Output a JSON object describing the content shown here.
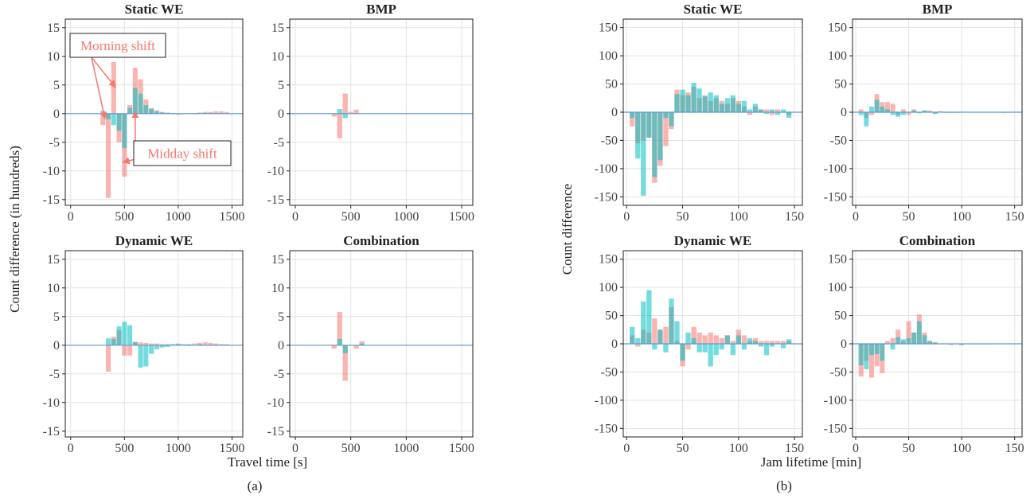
{
  "figure": {
    "width": 1299,
    "height": 627,
    "panel_a_caption": "(a)",
    "panel_b_caption": "(b)",
    "colors": {
      "series1": "#F8766D",
      "series2": "#00BFC4",
      "grid": "#e3e3e3",
      "baseline": "#5b9bd5",
      "annotation": "#F8766D"
    }
  },
  "chart_data": [
    {
      "id": "a1",
      "type": "bar",
      "title": "Static WE",
      "xlim": [
        -50,
        1600
      ],
      "ylim": [
        -16,
        16.5
      ],
      "bin_width": 50,
      "xticks": [
        0,
        500,
        1000,
        1500
      ],
      "yticks": [
        -15,
        -10,
        -5,
        0,
        5,
        10,
        15
      ],
      "grid": true,
      "annotations": [
        {
          "text": "Morning shift",
          "arrow_targets": [
            [
              320,
              -1
            ],
            [
              420,
              4.5
            ]
          ]
        },
        {
          "text": "Midday shift",
          "arrow_targets": [
            [
              480,
              -8.5
            ],
            [
              600,
              0.5
            ]
          ]
        }
      ],
      "series": [
        {
          "x": [
            300,
            350,
            400,
            450,
            500,
            550,
            600,
            650,
            700,
            750,
            800,
            850,
            900,
            950,
            1000,
            1050,
            1100,
            1150,
            1200,
            1250,
            1300,
            1350,
            1400,
            1450
          ],
          "values": [
            -2,
            -14.7,
            9,
            -5,
            -11,
            1.5,
            8,
            6,
            2.5,
            1,
            0.6,
            0.3,
            0.2,
            0.1,
            -0.2,
            -0.1,
            0.1,
            0.1,
            0.2,
            0.3,
            0.3,
            0.4,
            0.4,
            0.3
          ]
        },
        {
          "x": [
            300,
            350,
            400,
            450,
            500,
            550,
            600,
            650,
            700,
            750,
            800,
            850,
            900,
            950,
            1000,
            1050,
            1100,
            1150,
            1200,
            1250,
            1300,
            1350,
            1400,
            1450
          ],
          "values": [
            0.5,
            -1,
            -2,
            -3,
            -6,
            1,
            4.5,
            3.5,
            1.5,
            0.8,
            0.4,
            0.2,
            0.1,
            0.1,
            0,
            0,
            0,
            0,
            0,
            0.1,
            0.1,
            0.1,
            0.1,
            0
          ]
        }
      ]
    },
    {
      "id": "a2",
      "type": "bar",
      "title": "BMP",
      "xlim": [
        -50,
        1600
      ],
      "ylim": [
        -16,
        16.5
      ],
      "bin_width": 50,
      "xticks": [
        0,
        500,
        1000,
        1500
      ],
      "yticks": [
        -15,
        -10,
        -5,
        0,
        5,
        10,
        15
      ],
      "grid": true,
      "series": [
        {
          "x": [
            350,
            400,
            450,
            500,
            550
          ],
          "values": [
            -0.5,
            -4.3,
            3.5,
            0.3,
            0.7
          ]
        },
        {
          "x": [
            350,
            400,
            450,
            500,
            550
          ],
          "values": [
            0,
            0.8,
            -0.8,
            0,
            0
          ]
        }
      ]
    },
    {
      "id": "a3",
      "type": "bar",
      "title": "Dynamic WE",
      "xlim": [
        -50,
        1600
      ],
      "ylim": [
        -16,
        16.5
      ],
      "bin_width": 50,
      "xticks": [
        0,
        500,
        1000,
        1500
      ],
      "yticks": [
        -15,
        -10,
        -5,
        0,
        5,
        10,
        15
      ],
      "grid": true,
      "series": [
        {
          "x": [
            350,
            400,
            450,
            500,
            550,
            600,
            650,
            700,
            750,
            800,
            850,
            900,
            950,
            1000,
            1050,
            1100,
            1150,
            1200,
            1250,
            1300,
            1350,
            1400,
            1450
          ],
          "values": [
            -4.6,
            1.5,
            2.6,
            -1.8,
            -1.8,
            0.6,
            0.5,
            0.4,
            0.3,
            0.3,
            0.2,
            0.2,
            -0.1,
            0.3,
            0.2,
            -0.1,
            0.3,
            0.4,
            0.5,
            0.4,
            0.3,
            0.2,
            0.2
          ]
        },
        {
          "x": [
            350,
            400,
            450,
            500,
            550,
            600,
            650,
            700,
            750,
            800,
            850,
            900,
            950,
            1000,
            1050,
            1100,
            1150,
            1200,
            1250,
            1300,
            1350,
            1400,
            1450
          ],
          "values": [
            1.2,
            1.1,
            3.3,
            4.1,
            3.5,
            0.5,
            -3.9,
            -3.7,
            -1.5,
            -0.7,
            -0.4,
            -0.3,
            0.2,
            0.2,
            0.1,
            0.2,
            0,
            0.2,
            0.1,
            0.1,
            0.1,
            0.1,
            0
          ]
        }
      ]
    },
    {
      "id": "a4",
      "type": "bar",
      "title": "Combination",
      "xlim": [
        -50,
        1600
      ],
      "ylim": [
        -16,
        16.5
      ],
      "bin_width": 50,
      "xticks": [
        0,
        500,
        1000,
        1500
      ],
      "yticks": [
        -15,
        -10,
        -5,
        0,
        5,
        10,
        15
      ],
      "grid": true,
      "series": [
        {
          "x": [
            350,
            400,
            450,
            500,
            550,
            600
          ],
          "values": [
            -0.6,
            5.8,
            -6.2,
            0.1,
            -0.6,
            0.7
          ]
        },
        {
          "x": [
            350,
            400,
            450,
            500,
            550,
            600
          ],
          "values": [
            0,
            1.1,
            -1.4,
            0,
            0,
            0.3
          ]
        }
      ]
    },
    {
      "id": "b1",
      "type": "bar",
      "title": "Static WE",
      "xlim": [
        -3,
        157
      ],
      "ylim": [
        -165,
        165
      ],
      "bin_width": 5,
      "xticks": [
        0,
        50,
        100,
        150
      ],
      "yticks": [
        -150,
        -100,
        -50,
        0,
        50,
        100,
        150
      ],
      "grid": true,
      "series": [
        {
          "x": [
            5,
            10,
            15,
            20,
            25,
            30,
            35,
            40,
            45,
            50,
            55,
            60,
            65,
            70,
            75,
            80,
            85,
            90,
            95,
            100,
            105,
            110,
            115,
            120,
            125,
            130,
            135,
            140,
            145
          ],
          "values": [
            -25,
            -55,
            -50,
            -45,
            -125,
            -95,
            -60,
            -30,
            40,
            30,
            35,
            45,
            25,
            30,
            20,
            25,
            20,
            15,
            25,
            20,
            10,
            -5,
            10,
            5,
            5,
            -5,
            5,
            0,
            -5
          ]
        },
        {
          "x": [
            5,
            10,
            15,
            20,
            25,
            30,
            35,
            40,
            45,
            50,
            55,
            60,
            65,
            70,
            75,
            80,
            85,
            90,
            95,
            100,
            105,
            110,
            115,
            120,
            125,
            130,
            135,
            140,
            145
          ],
          "values": [
            -10,
            -82,
            -148,
            -45,
            -115,
            -85,
            -10,
            -25,
            32,
            40,
            30,
            52,
            42,
            28,
            35,
            30,
            15,
            25,
            30,
            15,
            20,
            5,
            15,
            5,
            -3,
            5,
            -5,
            5,
            -10
          ]
        }
      ]
    },
    {
      "id": "b2",
      "type": "bar",
      "title": "BMP",
      "xlim": [
        -3,
        157
      ],
      "ylim": [
        -165,
        165
      ],
      "bin_width": 5,
      "xticks": [
        0,
        50,
        100,
        150
      ],
      "yticks": [
        -150,
        -100,
        -50,
        0,
        50,
        100,
        150
      ],
      "grid": true,
      "series": [
        {
          "x": [
            5,
            10,
            15,
            20,
            25,
            30,
            35,
            40,
            45,
            50,
            55,
            60,
            65,
            70,
            75,
            80,
            85,
            90,
            95,
            100,
            105,
            110,
            115,
            120,
            125,
            130,
            135,
            140,
            145
          ],
          "values": [
            5,
            -10,
            -5,
            32,
            18,
            18,
            15,
            -5,
            5,
            -5,
            5,
            0,
            3,
            3,
            -2,
            2,
            -1,
            1,
            -1,
            1,
            0,
            0,
            0,
            0,
            0,
            0,
            0,
            0,
            0
          ]
        },
        {
          "x": [
            5,
            10,
            15,
            20,
            25,
            30,
            35,
            40,
            45,
            50,
            55,
            60,
            65,
            70,
            75,
            80,
            85,
            90,
            95,
            100,
            105,
            110,
            115,
            120,
            125,
            130,
            135,
            140,
            145
          ],
          "values": [
            -5,
            -25,
            10,
            22,
            10,
            5,
            -5,
            -8,
            -5,
            0,
            3,
            -2,
            3,
            0,
            -3,
            0,
            0,
            -1,
            0,
            0,
            0,
            0,
            0,
            0,
            0,
            0,
            0,
            -1,
            0
          ]
        }
      ]
    },
    {
      "id": "b3",
      "type": "bar",
      "title": "Dynamic WE",
      "xlim": [
        -3,
        157
      ],
      "ylim": [
        -165,
        165
      ],
      "bin_width": 5,
      "xticks": [
        0,
        50,
        100,
        150
      ],
      "yticks": [
        -150,
        -100,
        -50,
        0,
        50,
        100,
        150
      ],
      "grid": true,
      "series": [
        {
          "x": [
            5,
            10,
            15,
            20,
            25,
            30,
            35,
            40,
            45,
            50,
            55,
            60,
            65,
            70,
            75,
            80,
            85,
            90,
            95,
            100,
            105,
            110,
            115,
            120,
            125,
            130,
            135,
            140,
            145
          ],
          "values": [
            15,
            -5,
            25,
            20,
            45,
            25,
            30,
            65,
            5,
            -40,
            -10,
            30,
            20,
            15,
            20,
            15,
            10,
            15,
            5,
            25,
            15,
            5,
            10,
            5,
            5,
            5,
            5,
            5,
            5
          ]
        },
        {
          "x": [
            5,
            10,
            15,
            20,
            25,
            30,
            35,
            40,
            45,
            50,
            55,
            60,
            65,
            70,
            75,
            80,
            85,
            90,
            95,
            100,
            105,
            110,
            115,
            120,
            125,
            130,
            135,
            140,
            145
          ],
          "values": [
            30,
            10,
            75,
            95,
            -10,
            25,
            -15,
            80,
            40,
            -30,
            20,
            10,
            -15,
            -15,
            -40,
            -20,
            -10,
            15,
            -20,
            15,
            -10,
            10,
            5,
            -5,
            -20,
            -5,
            0,
            -8,
            8
          ]
        }
      ]
    },
    {
      "id": "b4",
      "type": "bar",
      "title": "Combination",
      "xlim": [
        -3,
        157
      ],
      "ylim": [
        -165,
        165
      ],
      "bin_width": 5,
      "xticks": [
        0,
        50,
        100,
        150
      ],
      "yticks": [
        -150,
        -100,
        -50,
        0,
        50,
        100,
        150
      ],
      "grid": true,
      "series": [
        {
          "x": [
            5,
            10,
            15,
            20,
            25,
            30,
            35,
            40,
            45,
            50,
            55,
            60,
            65,
            70,
            75,
            80,
            85,
            90,
            95,
            100,
            105,
            110,
            115,
            120,
            125,
            130,
            135,
            140,
            145
          ],
          "values": [
            -58,
            -30,
            -60,
            -40,
            -52,
            5,
            10,
            25,
            5,
            40,
            20,
            52,
            20,
            5,
            3,
            0,
            0,
            -2,
            0,
            -2,
            0,
            0,
            -1,
            0,
            -1,
            0,
            0,
            0,
            0
          ]
        },
        {
          "x": [
            5,
            10,
            15,
            20,
            25,
            30,
            35,
            40,
            45,
            50,
            55,
            60,
            65,
            70,
            75,
            80,
            85,
            90,
            95,
            100,
            105,
            110,
            115,
            120,
            125,
            130,
            135,
            140,
            145
          ],
          "values": [
            -38,
            -45,
            -20,
            -18,
            -30,
            0,
            -10,
            12,
            8,
            10,
            20,
            40,
            15,
            5,
            2,
            0,
            0,
            -1,
            -1,
            -2,
            0,
            -1,
            0,
            -1,
            0,
            0,
            0,
            0,
            0
          ]
        }
      ]
    }
  ],
  "axis_labels": {
    "a_x": "Travel time [s]",
    "a_y": "Count difference (in hundreds)",
    "b_x": "Jam lifetime [min]",
    "b_y": "Count difference"
  }
}
